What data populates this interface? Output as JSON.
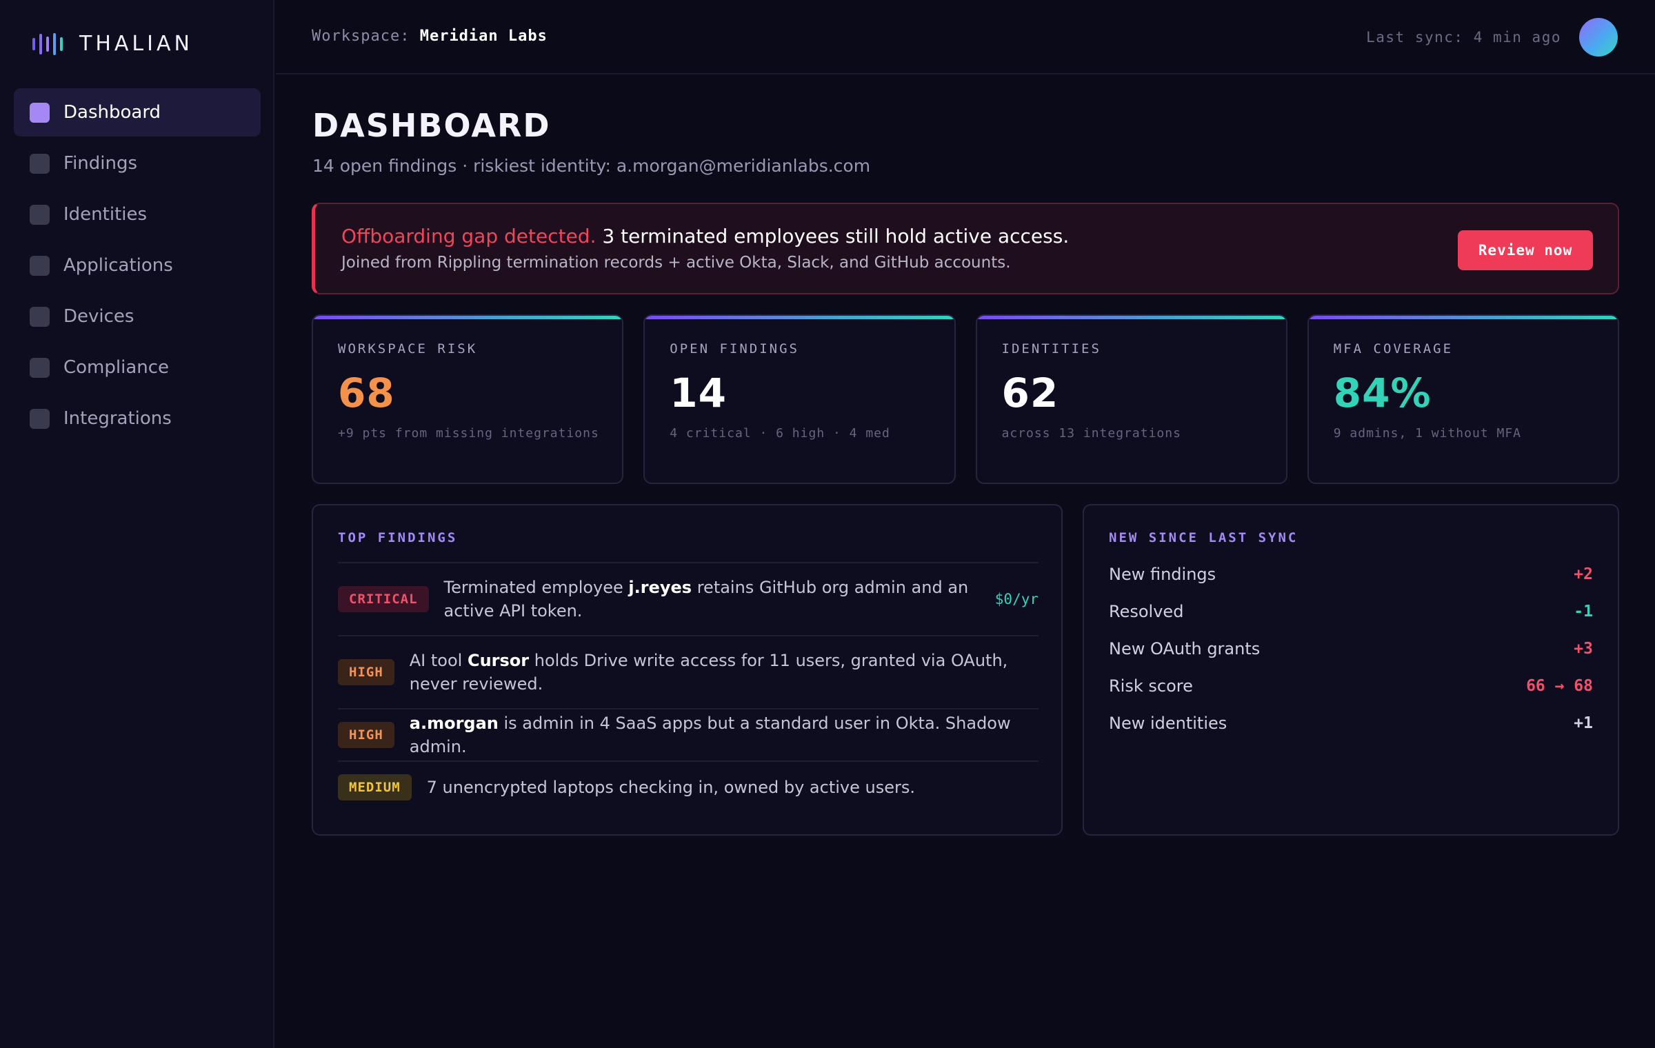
{
  "app": {
    "name": "THALIAN"
  },
  "sidebar": {
    "items": [
      {
        "label": "Dashboard",
        "active": true
      },
      {
        "label": "Findings"
      },
      {
        "label": "Identities"
      },
      {
        "label": "Applications"
      },
      {
        "label": "Devices"
      },
      {
        "label": "Compliance"
      },
      {
        "label": "Integrations"
      }
    ]
  },
  "header": {
    "workspace_label": "Workspace:",
    "workspace_name": "Meridian Labs",
    "last_sync": "Last sync: 4 min ago"
  },
  "page": {
    "title": "DASHBOARD",
    "subtitle": "14 open findings · riskiest identity: a.morgan@meridianlabs.com"
  },
  "alert": {
    "highlight": "Offboarding gap detected.",
    "message": " 3 terminated employees still hold active access.",
    "detail": "Joined from Rippling termination records + active Okta, Slack, and GitHub accounts.",
    "button": "Review now"
  },
  "stats": [
    {
      "label": "WORKSPACE RISK",
      "value": "68",
      "color": "#f4914a",
      "note": "+9 pts from missing integrations"
    },
    {
      "label": "OPEN FINDINGS",
      "value": "14",
      "color": "#ffffff",
      "note": "4 critical · 6 high · 4 med"
    },
    {
      "label": "IDENTITIES",
      "value": "62",
      "color": "#ffffff",
      "note": "across 13 integrations"
    },
    {
      "label": "MFA COVERAGE",
      "value": "84%",
      "color": "#33d3b8",
      "note": "9 admins, 1 without MFA"
    }
  ],
  "top_findings": {
    "title": "TOP FINDINGS",
    "rows": [
      {
        "severity": "CRITICAL",
        "before": "Terminated employee ",
        "bold": "j.reyes",
        "after": " retains GitHub org admin and an active API token.",
        "cost": "$0/yr"
      },
      {
        "severity": "HIGH",
        "before": "AI tool ",
        "bold": "Cursor",
        "after": " holds Drive write access for 11 users, granted via OAuth, never reviewed.",
        "cost": ""
      },
      {
        "severity": "HIGH",
        "before": "",
        "bold": "a.morgan",
        "after": " is admin in 4 SaaS apps but a standard user in Okta. Shadow admin.",
        "cost": ""
      },
      {
        "severity": "MEDIUM",
        "before": "",
        "bold": "",
        "after": "7 unencrypted laptops checking in, owned by active users.",
        "cost": ""
      }
    ]
  },
  "sync_panel": {
    "title": "NEW SINCE LAST SYNC",
    "rows": [
      {
        "label": "New findings",
        "value": "+2",
        "color": "#f4506a"
      },
      {
        "label": "Resolved",
        "value": "-1",
        "color": "#33d3b8"
      },
      {
        "label": "New OAuth grants",
        "value": "+3",
        "color": "#f4506a"
      },
      {
        "label": "Risk score",
        "value": "66 → 68",
        "color": "#f4506a"
      },
      {
        "label": "New identities",
        "value": "+1",
        "color": "#d1cfe0"
      }
    ]
  }
}
